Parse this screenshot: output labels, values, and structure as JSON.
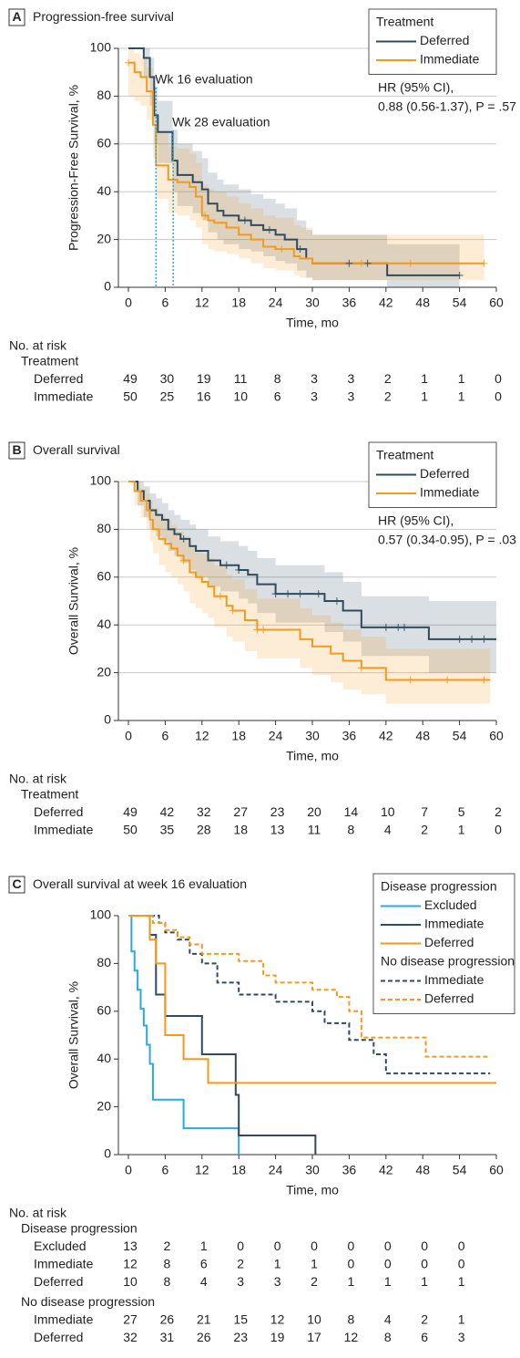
{
  "chart_data": [
    {
      "type": "step",
      "panel": "A",
      "title": "Progression-free survival",
      "x_label": "Time, mo",
      "y_label": "Progression-Free Survival, %",
      "xlim": [
        0,
        60
      ],
      "ylim": [
        0,
        100
      ],
      "xticks": [
        0,
        6,
        12,
        18,
        24,
        30,
        36,
        42,
        48,
        54,
        60
      ],
      "yticks": [
        0,
        20,
        40,
        60,
        80,
        100
      ],
      "grid": true,
      "legend_title": "Treatment",
      "hr": [
        "HR (95% CI),",
        "0.88 (0.56-1.37), P = .57"
      ],
      "annotations": [
        {
          "text": "Wk 16 evaluation",
          "x": 4.5
        },
        {
          "text": "Wk 28 evaluation",
          "x": 7.3
        }
      ],
      "series": [
        {
          "name": "Deferred",
          "color": "#2f4b5f",
          "x": [
            0,
            2.5,
            3.5,
            4.2,
            4.8,
            7.2,
            8,
            10.5,
            12,
            13,
            14.5,
            15.5,
            18,
            20,
            22,
            24,
            25.5,
            27.5,
            29,
            30,
            42.2,
            54
          ],
          "values": [
            100,
            96,
            88,
            72,
            65,
            53,
            47,
            44,
            41,
            35,
            32,
            30,
            28,
            26,
            24,
            22,
            20,
            16,
            12,
            10,
            5,
            5
          ],
          "ci_lower": [
            100,
            88,
            76,
            60,
            52,
            40,
            34,
            31,
            28,
            23,
            20,
            18,
            16,
            15,
            13,
            11,
            10,
            7,
            4,
            3,
            0,
            0
          ],
          "ci_upper": [
            100,
            100,
            96,
            84,
            78,
            66,
            60,
            57,
            54,
            48,
            45,
            43,
            41,
            39,
            37,
            35,
            33,
            28,
            24,
            22,
            18,
            18
          ],
          "censored": [
            19,
            23,
            28,
            36,
            39,
            54
          ]
        },
        {
          "name": "Immediate",
          "color": "#f29a1d",
          "x": [
            0,
            1,
            2,
            3,
            4,
            4.5,
            6.5,
            8,
            10,
            11,
            12,
            13,
            14,
            16,
            18,
            20,
            22,
            24,
            27,
            28,
            30,
            58
          ],
          "values": [
            94,
            90,
            88,
            82,
            68,
            51,
            45,
            44,
            42,
            38,
            30,
            28,
            27,
            25,
            22,
            20,
            17,
            16,
            13,
            12,
            10,
            10
          ],
          "ci_lower": [
            80,
            78,
            76,
            70,
            54,
            37,
            31,
            30,
            28,
            25,
            18,
            16,
            15,
            14,
            12,
            10,
            8,
            7,
            5,
            4,
            3,
            3
          ],
          "ci_upper": [
            100,
            98,
            96,
            92,
            80,
            65,
            59,
            58,
            56,
            52,
            43,
            41,
            40,
            38,
            35,
            33,
            30,
            29,
            26,
            25,
            22,
            22
          ],
          "censored": [
            0,
            12.5,
            25,
            38,
            46,
            58
          ]
        }
      ],
      "risk_table": {
        "title": "No. at risk",
        "groups": [
          {
            "name": "Treatment",
            "rows": [
              {
                "name": "Deferred",
                "values": [
                  49,
                  30,
                  19,
                  11,
                  8,
                  3,
                  3,
                  2,
                  1,
                  1,
                  0
                ]
              },
              {
                "name": "Immediate",
                "values": [
                  50,
                  25,
                  16,
                  10,
                  6,
                  3,
                  3,
                  2,
                  1,
                  1,
                  0
                ]
              }
            ]
          }
        ]
      }
    },
    {
      "type": "step",
      "panel": "B",
      "title": "Overall survival",
      "x_label": "Time, mo",
      "y_label": "Overall Survival, %",
      "xlim": [
        0,
        60
      ],
      "ylim": [
        0,
        100
      ],
      "xticks": [
        0,
        6,
        12,
        18,
        24,
        30,
        36,
        42,
        48,
        54,
        60
      ],
      "yticks": [
        0,
        20,
        40,
        60,
        80,
        100
      ],
      "grid": true,
      "legend_title": "Treatment",
      "hr": [
        "HR (95% CI),",
        "0.57 (0.34-0.95), P = .03"
      ],
      "series": [
        {
          "name": "Deferred",
          "color": "#2f4b5f",
          "x": [
            0,
            1.5,
            2.5,
            3.5,
            4.5,
            5.5,
            6.5,
            7.5,
            8.5,
            10,
            11,
            13,
            15,
            18,
            19.5,
            21,
            24,
            32,
            35,
            38,
            49,
            60
          ],
          "values": [
            100,
            96,
            92,
            88,
            86,
            84,
            80,
            78,
            76,
            73,
            71,
            67,
            65,
            63,
            61,
            57,
            53,
            50,
            46,
            39,
            34,
            34
          ],
          "ci_lower": [
            100,
            90,
            85,
            80,
            77,
            75,
            71,
            69,
            66,
            63,
            60,
            56,
            54,
            51,
            49,
            45,
            41,
            37,
            33,
            27,
            20,
            20
          ],
          "ci_upper": [
            100,
            100,
            98,
            95,
            93,
            91,
            88,
            86,
            84,
            82,
            80,
            77,
            75,
            73,
            71,
            68,
            65,
            62,
            58,
            52,
            50,
            50
          ],
          "censored": [
            9,
            16,
            18,
            24,
            26,
            28,
            31,
            34,
            42,
            44,
            45,
            54,
            56,
            58
          ]
        },
        {
          "name": "Immediate",
          "color": "#f29a1d",
          "x": [
            0,
            1,
            2,
            3,
            3.5,
            4,
            5,
            6,
            7,
            8,
            9,
            10,
            11,
            12,
            13,
            14,
            16,
            17,
            19,
            21,
            28,
            30,
            33,
            35,
            38,
            42,
            59
          ],
          "values": [
            100,
            96,
            92,
            88,
            84,
            80,
            76,
            74,
            72,
            69,
            67,
            62,
            60,
            58,
            56,
            52,
            48,
            46,
            42,
            38,
            34,
            31,
            28,
            25,
            22,
            17,
            17
          ],
          "ci_lower": [
            100,
            90,
            85,
            80,
            75,
            70,
            65,
            62,
            60,
            57,
            54,
            49,
            47,
            45,
            43,
            39,
            35,
            33,
            29,
            26,
            22,
            19,
            16,
            13,
            11,
            7,
            7
          ],
          "ci_upper": [
            100,
            100,
            97,
            95,
            92,
            89,
            86,
            84,
            82,
            79,
            77,
            73,
            71,
            70,
            68,
            65,
            61,
            59,
            55,
            51,
            47,
            44,
            41,
            38,
            35,
            30,
            30
          ],
          "censored": [
            9,
            15,
            17,
            21,
            22,
            38,
            46,
            52,
            58
          ]
        }
      ],
      "risk_table": {
        "title": "No. at risk",
        "groups": [
          {
            "name": "Treatment",
            "rows": [
              {
                "name": "Deferred",
                "values": [
                  49,
                  42,
                  32,
                  27,
                  23,
                  20,
                  14,
                  10,
                  7,
                  5,
                  2
                ]
              },
              {
                "name": "Immediate",
                "values": [
                  50,
                  35,
                  28,
                  18,
                  13,
                  11,
                  8,
                  4,
                  2,
                  1,
                  0
                ]
              }
            ]
          }
        ]
      }
    },
    {
      "type": "step",
      "panel": "C",
      "title": "Overall survival at week 16 evaluation",
      "x_label": "Time, mo",
      "y_label": "Overall Survival, %",
      "xlim": [
        0,
        60
      ],
      "ylim": [
        0,
        100
      ],
      "xticks": [
        0,
        6,
        12,
        18,
        24,
        30,
        36,
        42,
        48,
        54,
        60
      ],
      "yticks": [
        0,
        20,
        40,
        60,
        80,
        100
      ],
      "grid": false,
      "series_groups": [
        {
          "name": "Disease progression",
          "series": [
            {
              "name": "Excluded",
              "color": "#29aae1",
              "dash": false,
              "x": [
                0,
                0.5,
                1,
                1.5,
                2,
                2.5,
                3,
                3.5,
                4,
                9,
                18
              ],
              "values": [
                100,
                85,
                77,
                69,
                61,
                54,
                46,
                38,
                23,
                11,
                0
              ]
            },
            {
              "name": "Immediate",
              "color": "#2f4b5f",
              "dash": false,
              "x": [
                0,
                3.5,
                4.5,
                6,
                12,
                17.5,
                18,
                30.5
              ],
              "values": [
                100,
                92,
                67,
                58,
                42,
                25,
                8,
                0
              ]
            },
            {
              "name": "Deferred",
              "color": "#f29a1d",
              "dash": false,
              "x": [
                0,
                3.5,
                4.5,
                6,
                9,
                13,
                60
              ],
              "values": [
                100,
                90,
                80,
                50,
                40,
                30,
                30
              ]
            }
          ]
        },
        {
          "name": "No disease progression",
          "series": [
            {
              "name": "Immediate",
              "color": "#2f4b5f",
              "dash": true,
              "x": [
                0,
                5,
                6,
                8,
                10,
                12,
                14.5,
                18,
                24,
                30,
                32,
                36,
                40,
                42,
                59
              ],
              "values": [
                100,
                97,
                93,
                90,
                84,
                80,
                72,
                67,
                64,
                60,
                55,
                48,
                42,
                34,
                34
              ]
            },
            {
              "name": "Deferred",
              "color": "#f29a1d",
              "dash": true,
              "x": [
                0,
                4,
                6,
                8,
                10,
                12,
                18,
                22,
                24,
                30,
                34,
                36,
                38,
                48.5,
                59
              ],
              "values": [
                100,
                97,
                94,
                91,
                88,
                84,
                81,
                75,
                72,
                69,
                66,
                60,
                49,
                41,
                41
              ]
            }
          ]
        }
      ],
      "risk_table": {
        "title": "No. at risk",
        "groups": [
          {
            "name": "Disease progression",
            "rows": [
              {
                "name": "Excluded",
                "values": [
                  13,
                  2,
                  1,
                  0,
                  0,
                  0,
                  0,
                  0,
                  0,
                  0
                ]
              },
              {
                "name": "Immediate",
                "values": [
                  12,
                  8,
                  6,
                  2,
                  1,
                  1,
                  0,
                  0,
                  0,
                  0
                ]
              },
              {
                "name": "Deferred",
                "values": [
                  10,
                  8,
                  4,
                  3,
                  3,
                  2,
                  1,
                  1,
                  1,
                  1
                ]
              }
            ]
          },
          {
            "name": "No disease progression",
            "rows": [
              {
                "name": "Immediate",
                "values": [
                  27,
                  26,
                  21,
                  15,
                  12,
                  10,
                  8,
                  4,
                  2,
                  1
                ]
              },
              {
                "name": "Deferred",
                "values": [
                  32,
                  31,
                  26,
                  23,
                  19,
                  17,
                  12,
                  8,
                  6,
                  3
                ]
              }
            ]
          }
        ]
      }
    }
  ]
}
